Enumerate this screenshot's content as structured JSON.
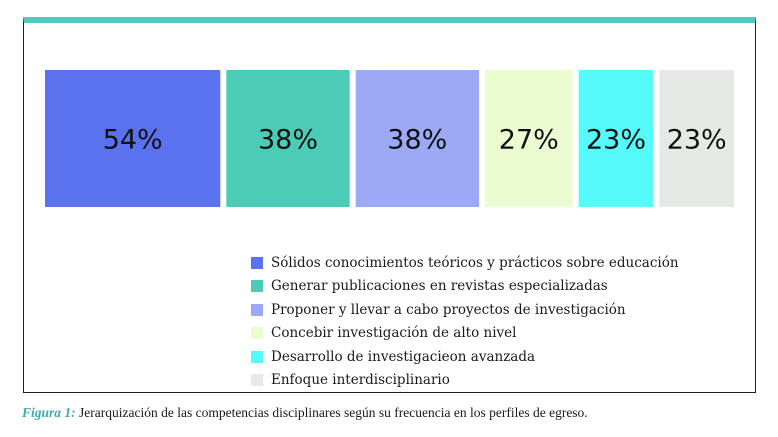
{
  "chart_data": {
    "type": "bar",
    "values": [
      54,
      38,
      38,
      27,
      23,
      23
    ],
    "value_labels": [
      "54%",
      "38%",
      "38%",
      "27%",
      "23%",
      "23%"
    ],
    "series": [
      {
        "name": "Sólidos conocimientos teóricos y prácticos sobre educación",
        "value": 54,
        "color": "#5b72ef"
      },
      {
        "name": "Generar publicaciones en revistas especializadas",
        "value": 38,
        "color": "#4ccbb6"
      },
      {
        "name": "Proponer y llevar a cabo proyectos de investigación",
        "value": 38,
        "color": "#9caaf5"
      },
      {
        "name": "Concebir investigación de alto nivel",
        "value": 27,
        "color": "#ebfcd0"
      },
      {
        "name": "Desarrollo de investigacieon avanzada",
        "value": 23,
        "color": "#55fbfb"
      },
      {
        "name": "Enfoque interdisciplinario",
        "value": 23,
        "color": "#e6e9e6"
      }
    ],
    "legend_position": "bottom",
    "grid": false
  },
  "caption": {
    "figure_label": "Figura 1:",
    "text": " Jerarquización de las competencias disciplinares según su frecuencia en los perfiles de egreso."
  },
  "colors": {
    "frame_top": "#4fc9be",
    "caption_label": "#3fa8b0"
  }
}
